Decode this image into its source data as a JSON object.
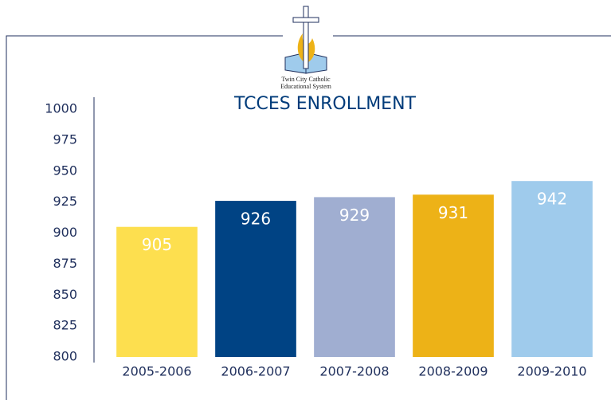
{
  "logo": {
    "lines": [
      "Twin City Catholic",
      "Educational System"
    ]
  },
  "chart_data": {
    "type": "bar",
    "title": "TCCES ENROLLMENT",
    "categories": [
      "2005-2006",
      "2006-2007",
      "2007-2008",
      "2008-2009",
      "2009-2010"
    ],
    "values": [
      905,
      926,
      929,
      931,
      942
    ],
    "colors": [
      "#fddf4f",
      "#004384",
      "#a0aed1",
      "#edb217",
      "#9fcbec"
    ],
    "ylim": [
      800,
      1000
    ],
    "yticks": [
      800,
      825,
      850,
      875,
      900,
      925,
      950,
      975,
      1000
    ],
    "grid": false
  }
}
